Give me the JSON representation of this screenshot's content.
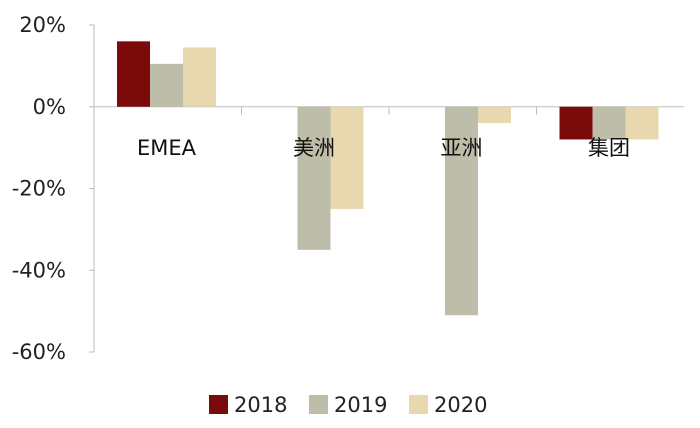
{
  "chart_data": {
    "type": "bar",
    "categories": [
      "EMEA",
      "美洲",
      "亚洲",
      "集团"
    ],
    "series": [
      {
        "name": "2018",
        "values": [
          16,
          null,
          null,
          -8
        ],
        "color": "#7b0a0a"
      },
      {
        "name": "2019",
        "values": [
          10.5,
          -35,
          -51,
          -8
        ],
        "color": "#bdbdaa"
      },
      {
        "name": "2020",
        "values": [
          14.5,
          -25,
          -4,
          -8
        ],
        "color": "#e8d8b0"
      }
    ],
    "ylim": [
      -60,
      20
    ],
    "yticks": [
      20,
      0,
      -20,
      -40,
      -60
    ],
    "ytick_labels": [
      "20%",
      "0%",
      "-20%",
      "-40%",
      "-60%"
    ],
    "grid": false,
    "legend_position": "bottom-center",
    "title": "",
    "xlabel": "",
    "ylabel": ""
  }
}
